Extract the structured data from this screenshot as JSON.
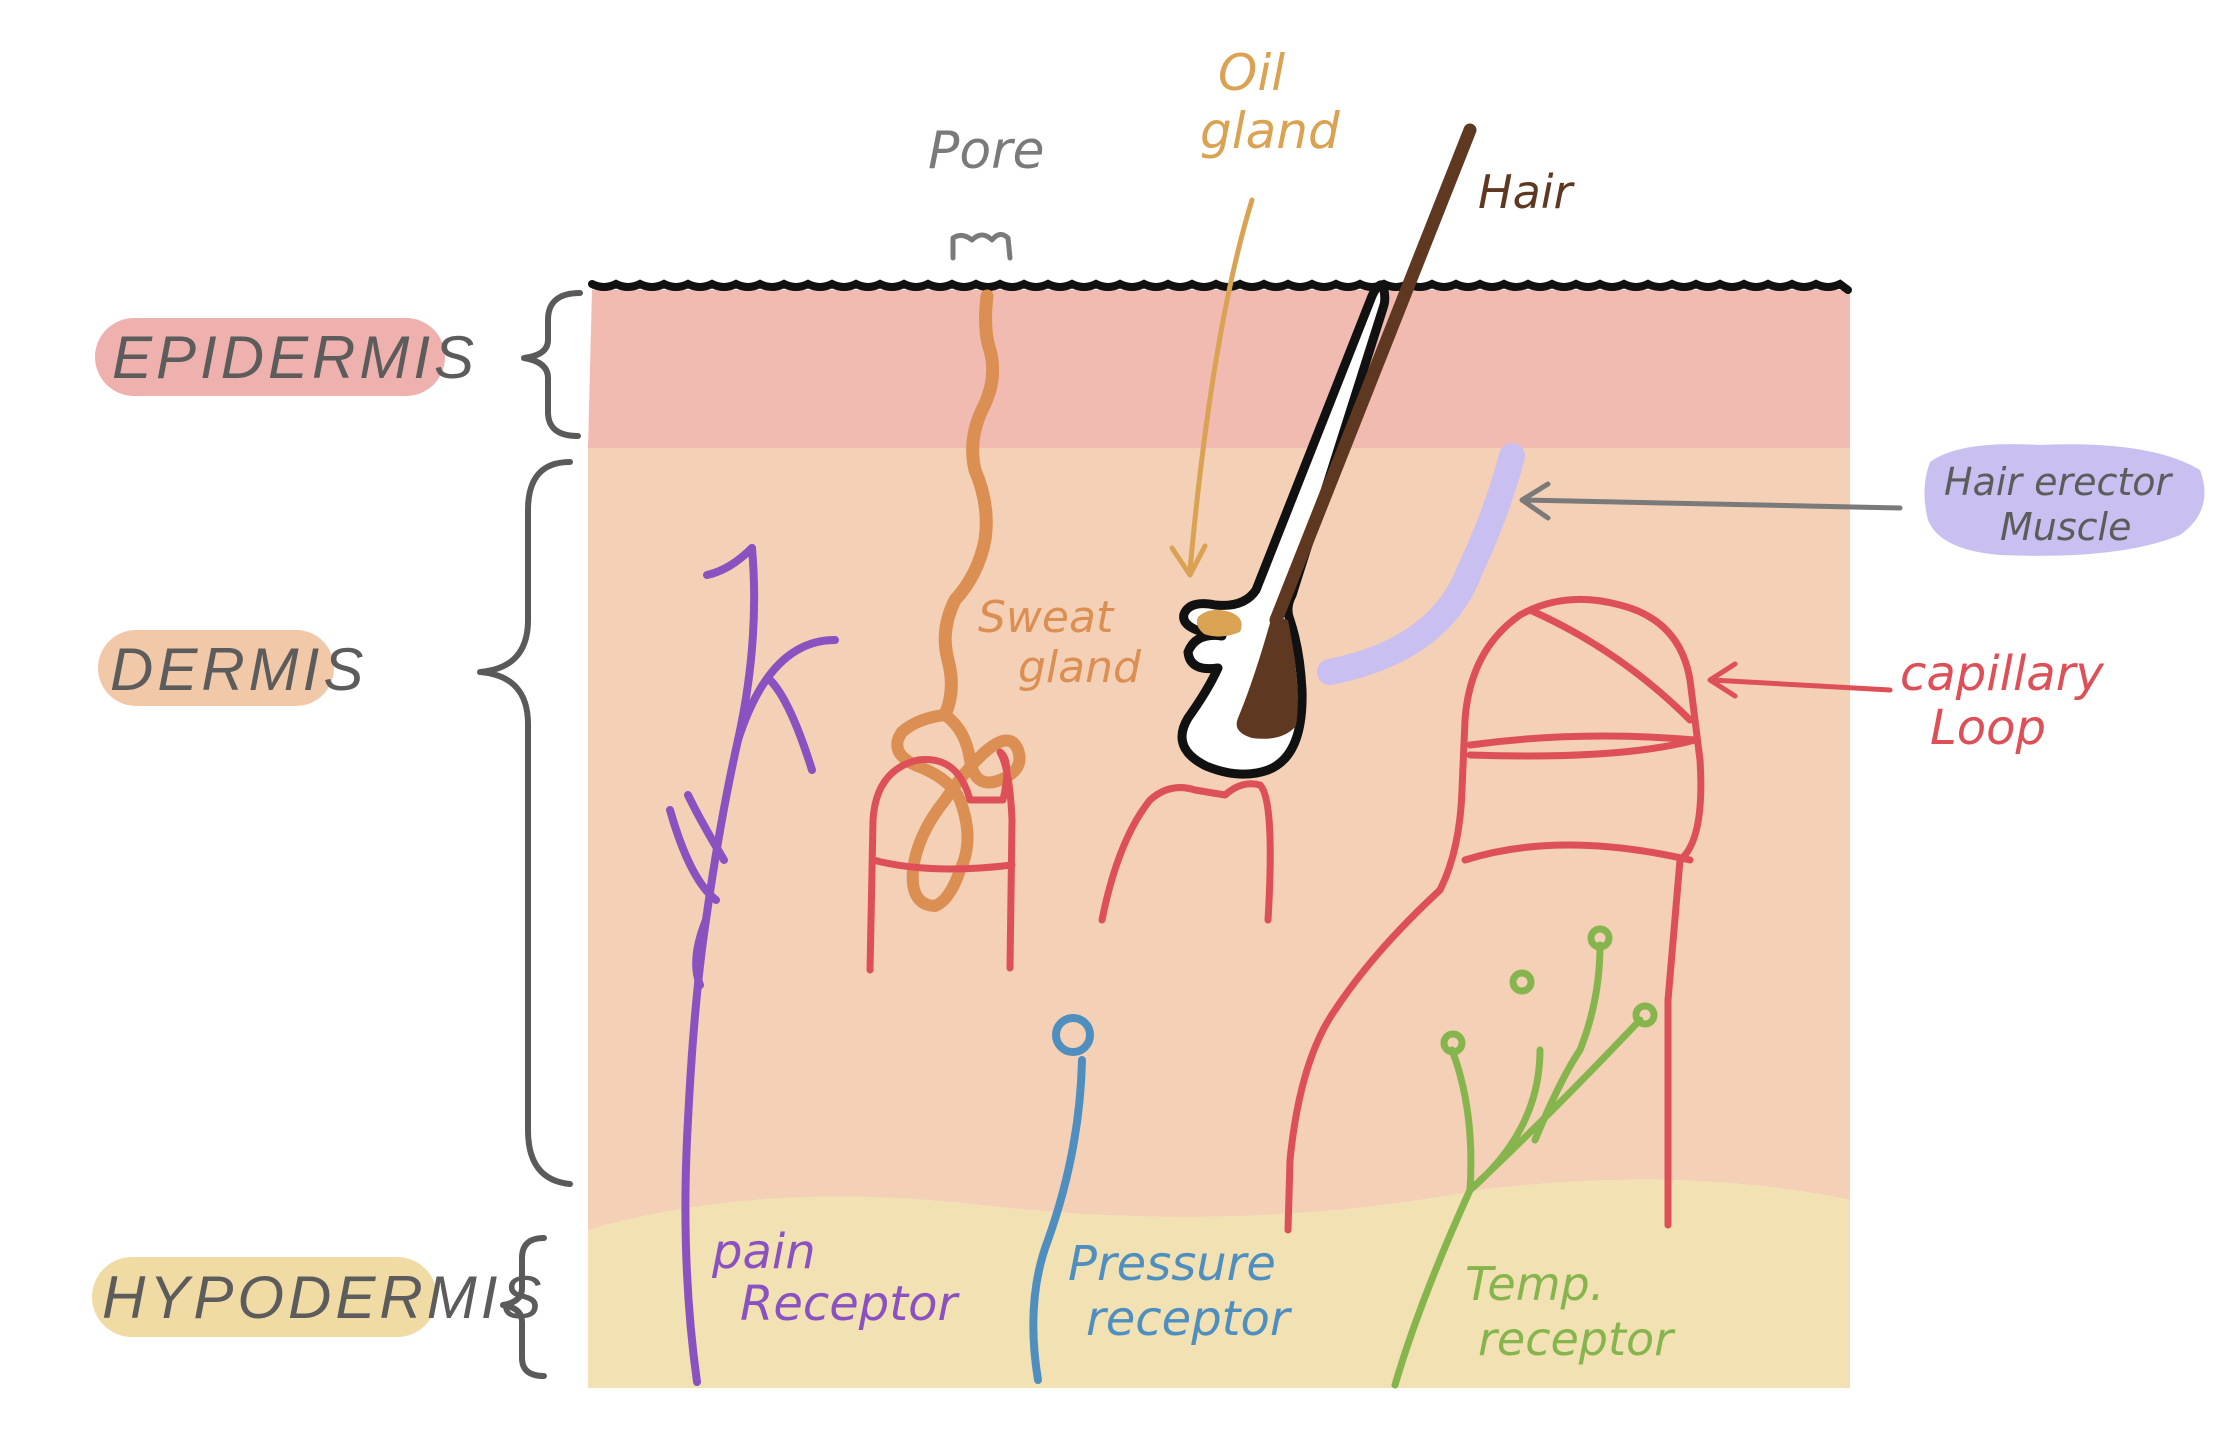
{
  "layers": [
    {
      "id": "epidermis",
      "label": "EPIDERMIS",
      "color": "#f1bbb2",
      "pill": "#eeb1ad"
    },
    {
      "id": "dermis",
      "label": "DERMIS",
      "color": "#f4d0b6",
      "pill": "#f2c9a8"
    },
    {
      "id": "hypodermis",
      "label": "HYPODERMIS",
      "color": "#f2e1b2",
      "pill": "#efdba3"
    }
  ],
  "structures": {
    "pore": {
      "label": "Pore",
      "color": "#7a7a7a"
    },
    "oil_gland": {
      "label_lines": [
        "Oil",
        "gland"
      ],
      "color": "#d9a353"
    },
    "hair": {
      "label": "Hair",
      "color": "#5e3820"
    },
    "sweat_gland": {
      "label_lines": [
        "Sweat",
        "gland"
      ],
      "color": "#dc8f52"
    },
    "hair_erector_muscle": {
      "label_lines": [
        "Hair erector",
        "Muscle"
      ],
      "color": "#c9bff0",
      "text_color": "#5c5c5c"
    },
    "capillary_loop": {
      "label_lines": [
        "capillary",
        "Loop"
      ],
      "color": "#de5058"
    },
    "pain_receptor": {
      "label_lines": [
        "pain",
        "Receptor"
      ],
      "color": "#8a52c1"
    },
    "pressure_receptor": {
      "label_lines": [
        "Pressure",
        "receptor"
      ],
      "color": "#4f8fc0"
    },
    "temp_receptor": {
      "label_lines": [
        "Temp.",
        "receptor"
      ],
      "color": "#86b54e"
    }
  }
}
